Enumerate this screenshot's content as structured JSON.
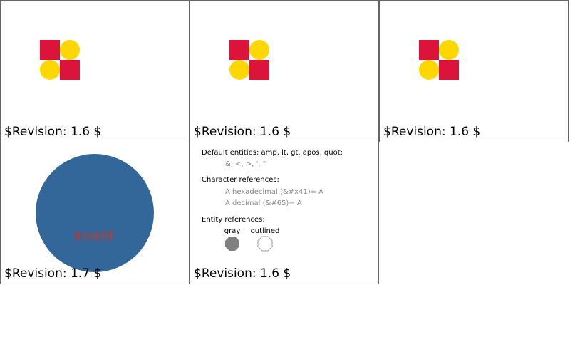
{
  "colors": {
    "red": "#dc143c",
    "yellow": "#ffd700",
    "blue": "#336699",
    "invalid_text": "#c0392b",
    "gray_fill": "#808080"
  },
  "tiles": [
    {
      "revision": "$Revision: 1.6 $"
    },
    {
      "revision": "$Revision: 1.6 $"
    },
    {
      "revision": "$Revision: 1.6 $"
    },
    {
      "revision": "$Revision: 1.7 $",
      "overlay_text": "Invalid"
    },
    {
      "revision": "$Revision: 1.6 $",
      "default_entities_heading": "Default entities: amp, lt, gt, apos, quot:",
      "default_entities_value": "&, <, >, ', \"",
      "char_refs_heading": "Character references:",
      "char_ref_hex": "A hexadecimal (&#x41)= A",
      "char_ref_dec": "A decimal (&#65)= A",
      "entity_refs_heading": "Entity references:",
      "label_gray": "gray",
      "label_outlined": "outlined"
    }
  ]
}
